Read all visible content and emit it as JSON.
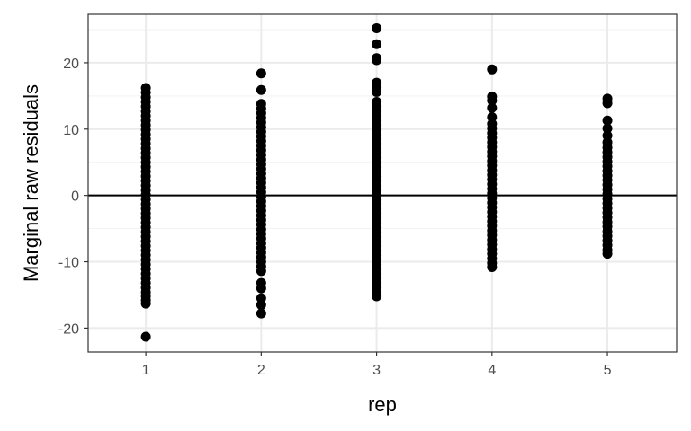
{
  "chart_data": {
    "type": "scatter",
    "xlabel": "rep",
    "ylabel": "Marginal raw residuals",
    "x_categories": [
      "1",
      "2",
      "3",
      "4",
      "5"
    ],
    "xlim": [
      0.5,
      5.6
    ],
    "ylim": [
      -23.6,
      27.3
    ],
    "y_ticks": [
      -20,
      -10,
      0,
      10,
      20
    ],
    "y_tick_labels": [
      "-20",
      "-10",
      "0",
      "10",
      "20"
    ],
    "reference_line": 0,
    "grid": true,
    "point_color": "#000000",
    "series": [
      {
        "x": 1,
        "points": [
          -21.3,
          -16.3,
          -15.8,
          -15.2,
          -14.6,
          -13.9,
          -13.2,
          -12.5,
          -11.8,
          -11.1,
          -10.4,
          -9.7,
          -9.0,
          -8.3,
          -7.6,
          -6.9,
          -6.2,
          -5.5,
          -4.8,
          -4.1,
          -3.4,
          -2.7,
          -2.0,
          -1.3,
          -0.6,
          0.1,
          0.8,
          1.5,
          2.2,
          2.9,
          3.6,
          4.3,
          5.0,
          5.7,
          6.4,
          7.1,
          7.8,
          8.5,
          9.2,
          9.9,
          10.6,
          11.3,
          12.0,
          12.7,
          13.4,
          14.1,
          14.8,
          15.5,
          16.2
        ]
      },
      {
        "x": 2,
        "points": [
          -17.8,
          -16.5,
          -15.5,
          -14.0,
          -13.2,
          -11.4,
          -10.7,
          -10.0,
          -9.3,
          -8.6,
          -7.9,
          -7.2,
          -6.5,
          -5.8,
          -5.1,
          -4.4,
          -3.7,
          -3.0,
          -2.3,
          -1.6,
          -0.9,
          -0.2,
          0.5,
          1.2,
          1.9,
          2.6,
          3.3,
          4.0,
          4.7,
          5.4,
          6.1,
          6.8,
          7.5,
          8.2,
          8.9,
          9.6,
          10.3,
          11.0,
          11.7,
          12.4,
          13.1,
          13.8,
          15.9,
          18.4
        ]
      },
      {
        "x": 3,
        "points": [
          -15.2,
          -14.6,
          -13.9,
          -13.2,
          -12.5,
          -11.8,
          -11.1,
          -10.4,
          -9.7,
          -9.0,
          -8.3,
          -7.6,
          -6.9,
          -6.2,
          -5.5,
          -4.8,
          -4.1,
          -3.4,
          -2.7,
          -2.0,
          -1.3,
          -0.6,
          0.1,
          0.8,
          1.5,
          2.2,
          2.9,
          3.6,
          4.3,
          5.0,
          5.7,
          6.4,
          7.1,
          7.8,
          8.5,
          9.2,
          9.9,
          10.6,
          11.3,
          12.0,
          12.7,
          13.4,
          14.1,
          15.6,
          16.3,
          17.0,
          20.4,
          20.7,
          22.8,
          25.2
        ]
      },
      {
        "x": 4,
        "points": [
          -10.8,
          -10.2,
          -9.5,
          -8.8,
          -8.1,
          -7.4,
          -6.7,
          -6.0,
          -5.3,
          -4.6,
          -3.9,
          -3.2,
          -2.5,
          -1.8,
          -1.1,
          -0.4,
          0.3,
          1.0,
          1.7,
          2.4,
          3.1,
          3.8,
          4.5,
          5.2,
          5.9,
          6.6,
          7.3,
          8.0,
          8.7,
          9.4,
          10.1,
          10.8,
          11.8,
          13.2,
          14.3,
          14.9,
          19.0
        ]
      },
      {
        "x": 5,
        "points": [
          -8.8,
          -8.2,
          -7.5,
          -6.8,
          -6.1,
          -5.4,
          -4.7,
          -4.0,
          -3.3,
          -2.6,
          -1.9,
          -1.2,
          -0.5,
          0.2,
          0.9,
          1.6,
          2.3,
          3.0,
          3.7,
          4.4,
          5.1,
          5.8,
          6.5,
          7.2,
          8.0,
          9.0,
          10.1,
          11.3,
          13.9,
          14.6
        ]
      }
    ]
  }
}
